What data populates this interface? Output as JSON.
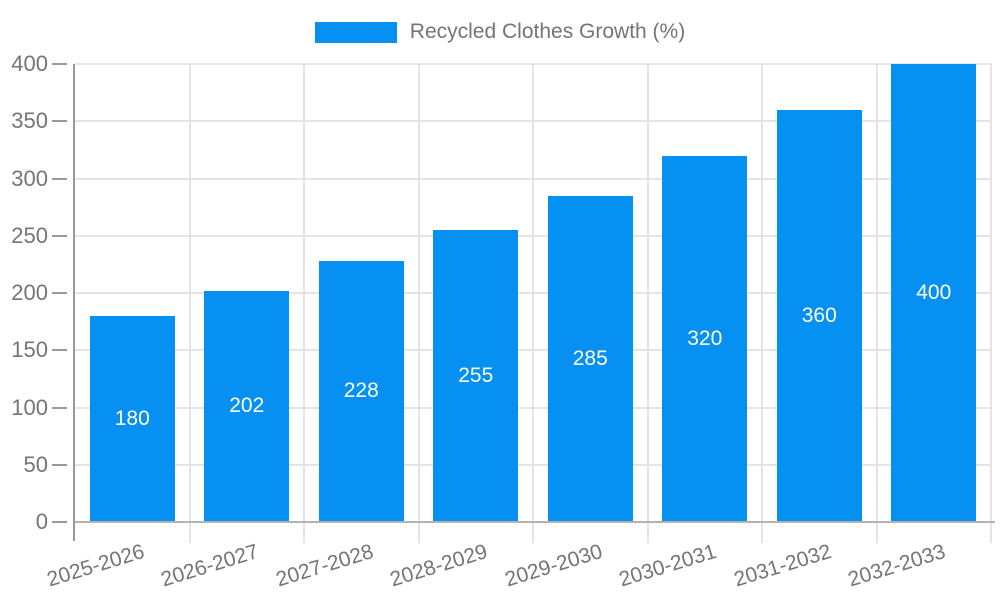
{
  "chart_data": {
    "type": "bar",
    "title": "",
    "series_name": "Recycled Clothes Growth (%)",
    "categories": [
      "2025-2026",
      "2026-2027",
      "2027-2028",
      "2028-2029",
      "2029-2030",
      "2030-2031",
      "2031-2032",
      "2032-2033"
    ],
    "values": [
      180,
      202,
      228,
      255,
      285,
      320,
      360,
      400
    ],
    "xlabel": "",
    "ylabel": "",
    "ylim": [
      0,
      400
    ],
    "yticks": [
      0,
      50,
      100,
      150,
      200,
      250,
      300,
      350,
      400
    ],
    "grid": true,
    "legend_position": "top-center",
    "value_labels_inside_bars": true,
    "colors": {
      "bar": "#0690F2",
      "value_label": "#FFFFFF",
      "axis_line": "#999999",
      "baseline": "#B3B3B3",
      "gridline": "#E4E4E4",
      "axis_text": "#757575"
    }
  }
}
